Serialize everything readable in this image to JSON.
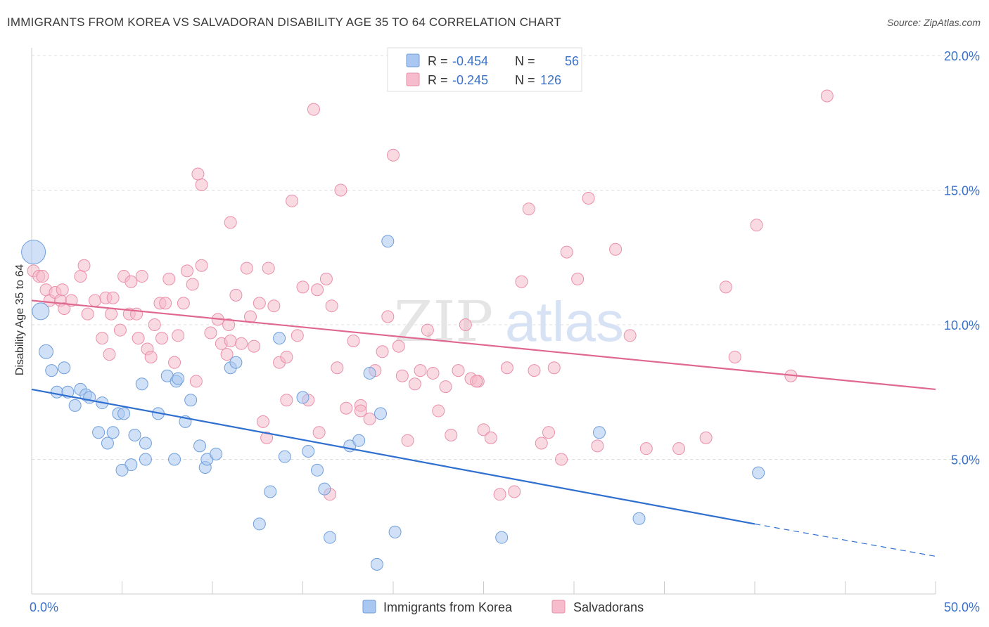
{
  "title": "IMMIGRANTS FROM KOREA VS SALVADORAN DISABILITY AGE 35 TO 64 CORRELATION CHART",
  "source": "Source: ZipAtlas.com",
  "watermark": {
    "zip": "ZIP",
    "atlas": "atlas"
  },
  "legend_top": [
    {
      "r_label": "R = ",
      "r_value": "-0.454",
      "n_label": "N = ",
      "n_value": "56",
      "color": "#a9c7f0",
      "stroke": "#6f9fdc"
    },
    {
      "r_label": "R = ",
      "r_value": "-0.245",
      "n_label": "N = ",
      "n_value": "126",
      "color": "#f6bccb",
      "stroke": "#ea8fa9"
    }
  ],
  "legend_bottom": [
    "Immigrants from Korea",
    "Salvadorans"
  ],
  "colors": {
    "blue_fill": "#a9c7f0",
    "blue_stroke": "#6f9fdc",
    "blue_line": "#2f6fd0",
    "pink_fill": "#f6bccb",
    "pink_stroke": "#ea8fa9",
    "pink_line": "#e0678f",
    "accent_text": "#3b72c9"
  },
  "chart_data": {
    "type": "scatter",
    "title": "IMMIGRANTS FROM KOREA VS SALVADORAN DISABILITY AGE 35 TO 64 CORRELATION CHART",
    "xlabel": "",
    "ylabel": "Disability Age 35 to 64",
    "xlim": [
      0,
      50
    ],
    "ylim": [
      0,
      20
    ],
    "x_tick_labels": [
      "0.0%",
      "50.0%"
    ],
    "y_tick_labels": [
      "5.0%",
      "10.0%",
      "15.0%",
      "20.0%"
    ],
    "y_ticks": [
      5,
      10,
      15,
      20
    ],
    "grid": true,
    "legend_position": "top-center",
    "series": [
      {
        "name": "Immigrants from Korea",
        "R": -0.454,
        "N": 56,
        "trend": {
          "x": [
            0,
            40
          ],
          "y": [
            7.6,
            2.6
          ],
          "dashed_to": [
            50,
            1.4
          ]
        },
        "points": [
          [
            0.1,
            12.7
          ],
          [
            0.5,
            10.5
          ],
          [
            0.8,
            9.0
          ],
          [
            1.1,
            8.3
          ],
          [
            1.8,
            8.4
          ],
          [
            1.4,
            7.5
          ],
          [
            2.0,
            7.5
          ],
          [
            2.7,
            7.6
          ],
          [
            2.4,
            7.0
          ],
          [
            3.0,
            7.4
          ],
          [
            3.2,
            7.3
          ],
          [
            3.9,
            7.1
          ],
          [
            4.8,
            6.7
          ],
          [
            5.1,
            6.7
          ],
          [
            3.7,
            6.0
          ],
          [
            4.5,
            6.0
          ],
          [
            4.2,
            5.6
          ],
          [
            5.7,
            5.9
          ],
          [
            6.3,
            5.6
          ],
          [
            7.0,
            6.7
          ],
          [
            7.5,
            8.1
          ],
          [
            6.3,
            5.0
          ],
          [
            5.5,
            4.8
          ],
          [
            5.0,
            4.6
          ],
          [
            8.0,
            7.9
          ],
          [
            8.8,
            7.2
          ],
          [
            8.5,
            6.4
          ],
          [
            7.9,
            5.0
          ],
          [
            9.3,
            5.5
          ],
          [
            9.6,
            4.7
          ],
          [
            9.7,
            5.0
          ],
          [
            10.2,
            5.2
          ],
          [
            11.0,
            8.4
          ],
          [
            11.3,
            8.6
          ],
          [
            13.7,
            9.5
          ],
          [
            13.2,
            3.8
          ],
          [
            14.0,
            5.1
          ],
          [
            12.6,
            2.6
          ],
          [
            15.0,
            7.3
          ],
          [
            15.3,
            5.3
          ],
          [
            15.8,
            4.6
          ],
          [
            16.2,
            3.9
          ],
          [
            16.5,
            2.1
          ],
          [
            17.6,
            5.5
          ],
          [
            18.1,
            5.7
          ],
          [
            18.7,
            8.2
          ],
          [
            19.1,
            1.1
          ],
          [
            19.3,
            6.7
          ],
          [
            19.7,
            13.1
          ],
          [
            20.1,
            2.3
          ],
          [
            26.0,
            2.1
          ],
          [
            31.4,
            6.0
          ],
          [
            33.6,
            2.8
          ],
          [
            40.2,
            4.5
          ],
          [
            6.1,
            7.8
          ],
          [
            8.1,
            8.0
          ]
        ]
      },
      {
        "name": "Salvadorans",
        "R": -0.245,
        "N": 126,
        "trend": {
          "x": [
            0,
            50
          ],
          "y": [
            10.9,
            7.6
          ]
        },
        "points": [
          [
            0.1,
            12.0
          ],
          [
            0.4,
            11.8
          ],
          [
            0.6,
            11.8
          ],
          [
            0.8,
            11.3
          ],
          [
            1.0,
            10.9
          ],
          [
            1.3,
            11.2
          ],
          [
            1.6,
            10.9
          ],
          [
            1.8,
            10.6
          ],
          [
            1.7,
            11.3
          ],
          [
            2.2,
            10.9
          ],
          [
            2.7,
            11.8
          ],
          [
            2.9,
            12.2
          ],
          [
            3.1,
            10.4
          ],
          [
            3.5,
            10.9
          ],
          [
            3.9,
            9.5
          ],
          [
            4.1,
            11.0
          ],
          [
            4.3,
            8.9
          ],
          [
            4.4,
            10.4
          ],
          [
            4.5,
            11.0
          ],
          [
            4.9,
            9.8
          ],
          [
            5.1,
            11.8
          ],
          [
            5.4,
            10.4
          ],
          [
            5.5,
            11.6
          ],
          [
            5.9,
            9.5
          ],
          [
            6.1,
            11.8
          ],
          [
            6.4,
            9.1
          ],
          [
            6.6,
            8.8
          ],
          [
            6.8,
            10.0
          ],
          [
            7.1,
            10.8
          ],
          [
            7.4,
            10.8
          ],
          [
            7.6,
            11.7
          ],
          [
            7.9,
            8.6
          ],
          [
            8.1,
            9.6
          ],
          [
            8.4,
            10.8
          ],
          [
            8.6,
            12.0
          ],
          [
            8.9,
            11.5
          ],
          [
            9.1,
            7.9
          ],
          [
            9.4,
            12.2
          ],
          [
            9.9,
            9.7
          ],
          [
            10.3,
            10.2
          ],
          [
            10.5,
            9.3
          ],
          [
            10.9,
            10.0
          ],
          [
            11.0,
            9.4
          ],
          [
            11.3,
            11.1
          ],
          [
            11.6,
            9.3
          ],
          [
            11.9,
            12.1
          ],
          [
            12.1,
            10.3
          ],
          [
            12.3,
            9.2
          ],
          [
            12.6,
            10.8
          ],
          [
            12.8,
            6.4
          ],
          [
            13.1,
            12.1
          ],
          [
            13.4,
            10.7
          ],
          [
            13.7,
            8.6
          ],
          [
            14.1,
            8.8
          ],
          [
            14.4,
            14.6
          ],
          [
            14.7,
            9.6
          ],
          [
            15.0,
            11.4
          ],
          [
            15.3,
            7.2
          ],
          [
            15.6,
            18.0
          ],
          [
            15.8,
            11.3
          ],
          [
            16.3,
            11.7
          ],
          [
            16.6,
            10.7
          ],
          [
            16.9,
            8.4
          ],
          [
            17.1,
            15.0
          ],
          [
            17.4,
            6.9
          ],
          [
            17.8,
            9.4
          ],
          [
            18.2,
            7.0
          ],
          [
            18.7,
            6.5
          ],
          [
            19.0,
            8.3
          ],
          [
            19.4,
            9.0
          ],
          [
            19.7,
            10.3
          ],
          [
            20.0,
            16.3
          ],
          [
            20.3,
            9.2
          ],
          [
            20.5,
            8.1
          ],
          [
            20.8,
            5.7
          ],
          [
            21.2,
            7.8
          ],
          [
            21.5,
            8.3
          ],
          [
            21.9,
            9.8
          ],
          [
            22.2,
            8.2
          ],
          [
            22.5,
            6.8
          ],
          [
            22.9,
            7.7
          ],
          [
            23.2,
            5.9
          ],
          [
            23.6,
            8.3
          ],
          [
            24.0,
            10.0
          ],
          [
            24.3,
            8.0
          ],
          [
            24.7,
            7.9
          ],
          [
            25.0,
            6.1
          ],
          [
            25.4,
            5.8
          ],
          [
            25.9,
            3.7
          ],
          [
            26.3,
            8.4
          ],
          [
            26.7,
            3.8
          ],
          [
            27.1,
            11.6
          ],
          [
            27.5,
            14.3
          ],
          [
            27.8,
            8.3
          ],
          [
            28.2,
            5.6
          ],
          [
            28.6,
            6.0
          ],
          [
            28.9,
            8.4
          ],
          [
            29.3,
            5.0
          ],
          [
            29.6,
            12.7
          ],
          [
            30.2,
            11.7
          ],
          [
            30.8,
            14.7
          ],
          [
            31.3,
            5.5
          ],
          [
            32.3,
            12.8
          ],
          [
            33.1,
            9.6
          ],
          [
            34.0,
            5.4
          ],
          [
            35.8,
            5.4
          ],
          [
            37.3,
            5.8
          ],
          [
            38.4,
            11.4
          ],
          [
            38.9,
            8.8
          ],
          [
            40.1,
            13.7
          ],
          [
            42.0,
            8.1
          ],
          [
            44.0,
            18.5
          ],
          [
            5.8,
            10.4
          ],
          [
            9.4,
            15.2
          ],
          [
            11.0,
            13.8
          ],
          [
            14.1,
            7.2
          ],
          [
            16.5,
            3.7
          ],
          [
            18.2,
            6.8
          ],
          [
            13.0,
            5.8
          ],
          [
            24.6,
            7.9
          ],
          [
            15.9,
            6.0
          ],
          [
            7.2,
            9.5
          ],
          [
            10.8,
            8.9
          ],
          [
            9.2,
            15.6
          ]
        ]
      }
    ]
  }
}
